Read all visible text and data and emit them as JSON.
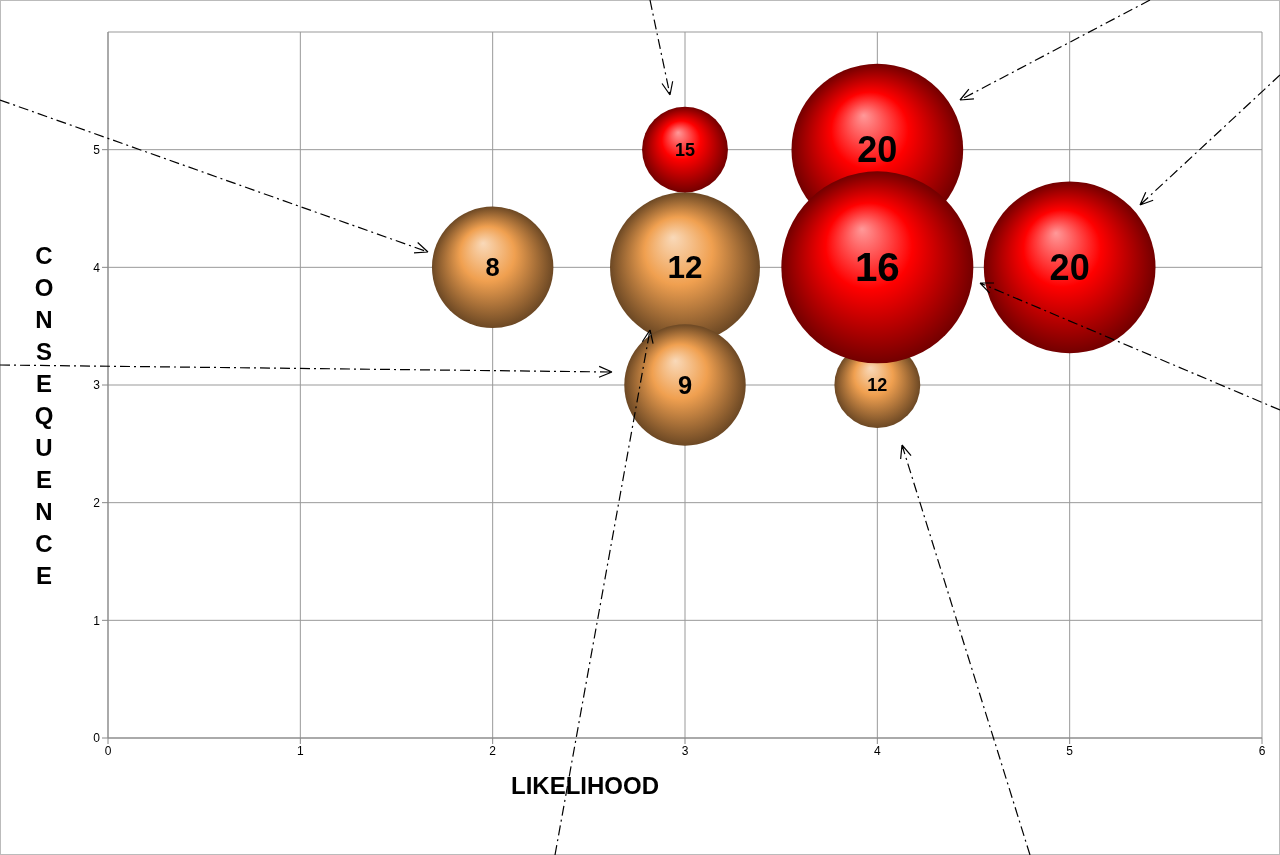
{
  "chart_data": {
    "type": "bubble",
    "xlabel": "LIKELIHOOD",
    "ylabel": "CONSEQUENCE",
    "xlim": [
      0,
      6
    ],
    "xticks": [
      0,
      1,
      2,
      3,
      4,
      5,
      6
    ],
    "ylim": [
      0,
      6
    ],
    "yticks": [
      0,
      1,
      2,
      3,
      4,
      5
    ],
    "grid": true,
    "series": [
      {
        "color": "#f0a050",
        "x": [
          2,
          3,
          3,
          4
        ],
        "values": [
          4,
          4,
          3,
          3
        ],
        "sizes": [
          0.4,
          0.61,
          0.4,
          0.2
        ]
      },
      {
        "color": "#ff0000",
        "x": [
          3,
          4,
          4,
          5
        ],
        "values": [
          5,
          5,
          4,
          4
        ],
        "sizes": [
          0.2,
          0.8,
          1,
          0.8
        ]
      }
    ],
    "annotations": [
      {
        "text": "8",
        "x": 2,
        "y": 4
      },
      {
        "text": "12",
        "x": 3,
        "y": 4
      },
      {
        "text": "9",
        "x": 3,
        "y": 3
      },
      {
        "text": "12",
        "x": 4,
        "y": 3
      },
      {
        "text": "15",
        "x": 3,
        "y": 5
      },
      {
        "text": "20",
        "x": 4,
        "y": 5
      },
      {
        "text": "16",
        "x": 4,
        "y": 4
      },
      {
        "text": "20",
        "x": 5,
        "y": 4
      }
    ]
  }
}
